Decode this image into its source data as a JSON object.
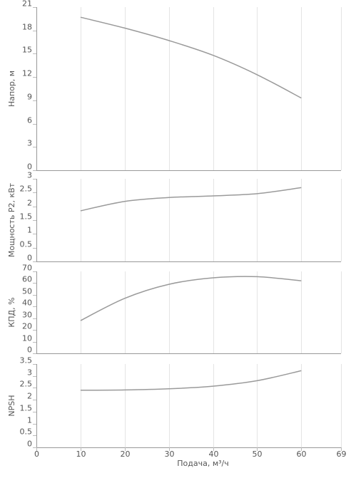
{
  "chart_data": [
    {
      "type": "line",
      "ylabel": "Напор, м",
      "ylim": [
        0,
        21
      ],
      "yticks": [
        "0",
        "3",
        "6",
        "9",
        "12",
        "15",
        "18",
        "21"
      ],
      "xlim": [
        0,
        69
      ],
      "grid": true,
      "series": [
        {
          "x": [
            10,
            20,
            30,
            40,
            50,
            60
          ],
          "y": [
            19.7,
            18.3,
            16.7,
            14.8,
            12.3,
            9.3
          ],
          "color": "#9a9a9a"
        }
      ]
    },
    {
      "type": "line",
      "ylabel": "Мощность P2, кВт",
      "ylim": [
        0,
        3
      ],
      "yticks": [
        "0",
        "0.5",
        "1",
        "1.5",
        "2",
        "2.5",
        "3"
      ],
      "xlim": [
        0,
        69
      ],
      "grid": true,
      "series": [
        {
          "x": [
            10,
            20,
            30,
            40,
            50,
            60
          ],
          "y": [
            1.84,
            2.18,
            2.32,
            2.38,
            2.46,
            2.68
          ],
          "color": "#9a9a9a"
        }
      ]
    },
    {
      "type": "line",
      "ylabel": "КПД, %",
      "ylim": [
        0,
        70
      ],
      "yticks": [
        "0",
        "10",
        "20",
        "30",
        "40",
        "50",
        "60",
        "70"
      ],
      "xlim": [
        0,
        69
      ],
      "grid": true,
      "series": [
        {
          "x": [
            10,
            20,
            30,
            40,
            50,
            60
          ],
          "y": [
            28,
            47,
            59,
            64.5,
            65.5,
            62
          ],
          "color": "#9a9a9a"
        }
      ]
    },
    {
      "type": "line",
      "ylabel": "NPSH",
      "ylim": [
        0,
        3.5
      ],
      "yticks": [
        "0",
        "0.5",
        "1",
        "1.5",
        "2",
        "2.5",
        "3",
        "3.5"
      ],
      "xlim": [
        0,
        69
      ],
      "xticks": [
        "0",
        "10",
        "20",
        "30",
        "40",
        "50",
        "60",
        "69"
      ],
      "xlabel": "Подача, м³/ч",
      "grid": true,
      "series": [
        {
          "x": [
            10,
            20,
            30,
            40,
            50,
            60
          ],
          "y": [
            2.4,
            2.41,
            2.46,
            2.57,
            2.8,
            3.22
          ],
          "color": "#9a9a9a"
        }
      ]
    }
  ]
}
